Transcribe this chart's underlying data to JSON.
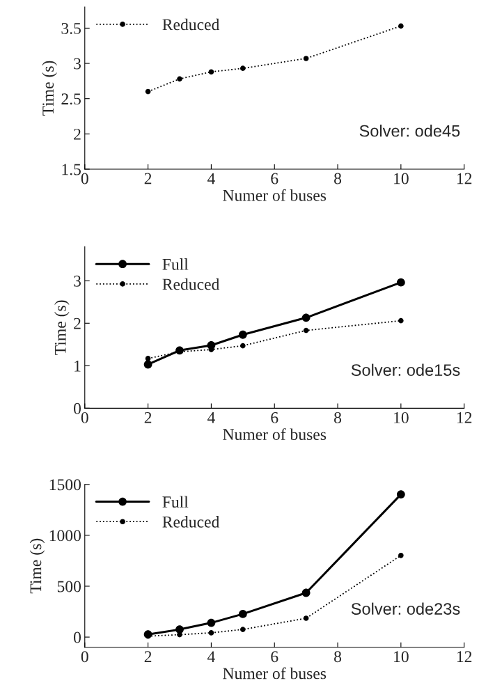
{
  "chart_data": [
    {
      "type": "line",
      "xlabel": "Numer of buses",
      "ylabel": "Time (s)",
      "x": [
        2,
        3,
        4,
        5,
        7,
        10
      ],
      "xlim": [
        0,
        12
      ],
      "xticks": [
        0,
        2,
        4,
        6,
        8,
        10,
        12
      ],
      "ylim": [
        1.5,
        3.8
      ],
      "yticks": [
        1.5,
        2,
        2.5,
        3,
        3.5
      ],
      "grid": false,
      "legend": "top left",
      "marker": "circle",
      "annotations": [
        "Solver: ode45"
      ],
      "series": [
        {
          "name": "Reduced",
          "color": "#000000",
          "line_style": "dotted",
          "values": [
            2.6,
            2.78,
            2.88,
            2.93,
            3.07,
            3.53
          ]
        }
      ]
    },
    {
      "type": "line",
      "xlabel": "Numer of buses",
      "ylabel": "Time (s)",
      "x": [
        2,
        3,
        4,
        5,
        7,
        10
      ],
      "xlim": [
        0,
        12
      ],
      "xticks": [
        0,
        2,
        4,
        6,
        8,
        10,
        12
      ],
      "ylim": [
        0,
        3.8
      ],
      "yticks": [
        0,
        1,
        2,
        3
      ],
      "grid": false,
      "legend": "top left",
      "marker": "circle",
      "annotations": [
        "Solver: ode15s"
      ],
      "series": [
        {
          "name": "Full",
          "color": "#000000",
          "line_style": "solid",
          "values": [
            1.03,
            1.36,
            1.48,
            1.73,
            2.13,
            2.96
          ]
        },
        {
          "name": "Reduced",
          "color": "#000000",
          "line_style": "dotted",
          "values": [
            1.17,
            1.33,
            1.38,
            1.47,
            1.83,
            2.06
          ]
        }
      ]
    },
    {
      "type": "line",
      "xlabel": "Numer of buses",
      "ylabel": "Time (s)",
      "x": [
        2,
        3,
        4,
        5,
        7,
        10
      ],
      "xlim": [
        0,
        12
      ],
      "xticks": [
        0,
        2,
        4,
        6,
        8,
        10,
        12
      ],
      "ylim": [
        -100,
        1500
      ],
      "yticks": [
        0,
        500,
        1000,
        1500
      ],
      "grid": false,
      "legend": "top left",
      "marker": "circle",
      "annotations": [
        "Solver: ode23s"
      ],
      "series": [
        {
          "name": "Full",
          "color": "#000000",
          "line_style": "solid",
          "values": [
            27,
            75,
            140,
            227,
            435,
            1402
          ]
        },
        {
          "name": "Reduced",
          "color": "#000000",
          "line_style": "dotted",
          "values": [
            9,
            24,
            42,
            75,
            185,
            802
          ]
        }
      ]
    }
  ]
}
